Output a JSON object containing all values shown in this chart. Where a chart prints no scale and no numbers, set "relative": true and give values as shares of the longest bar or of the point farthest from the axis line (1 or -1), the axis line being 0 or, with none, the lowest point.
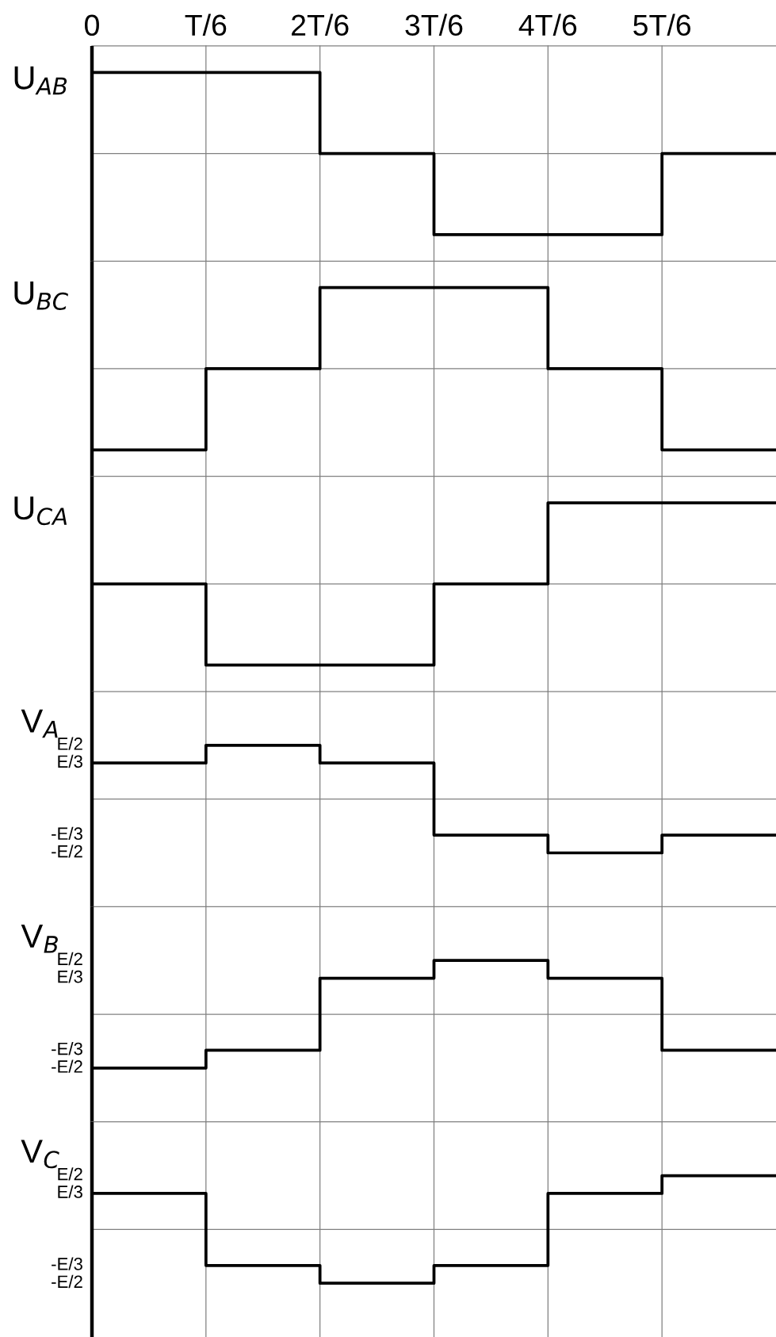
{
  "chart_data": [
    {
      "type": "step",
      "ylabel": "U$_{AB}$",
      "relative": true,
      "categories": [
        "0",
        "T/6",
        "2T/6",
        "3T/6",
        "4T/6",
        "5T/6",
        null
      ],
      "tick_labels": "x",
      "grid": "x",
      "ref_lines": [
        {
          "axis": "y",
          "value": 0,
          "color": "#808080"
        }
      ],
      "series": [
        {
          "color": "#000000",
          "values": [
            1,
            1,
            0,
            -1,
            -1,
            0,
            0
          ]
        }
      ]
    },
    {
      "type": "step",
      "ylabel": "U$_{BC}$",
      "relative": true,
      "categories": [
        null,
        null,
        null,
        null,
        null,
        null,
        null
      ],
      "tick_labels": false,
      "grid": "x",
      "ref_lines": [
        {
          "axis": "y",
          "value": 0,
          "color": "#808080"
        }
      ],
      "series": [
        {
          "color": "#000000",
          "values": [
            -1,
            0,
            1,
            1,
            0,
            -1,
            -1
          ]
        }
      ]
    },
    {
      "type": "step",
      "ylabel": "U$_{CA}$",
      "relative": true,
      "categories": [
        null,
        null,
        null,
        null,
        null,
        null,
        null
      ],
      "tick_labels": false,
      "grid": "x",
      "ref_lines": [
        {
          "axis": "y",
          "value": 0,
          "color": "#808080"
        }
      ],
      "series": [
        {
          "color": "#000000",
          "values": [
            0,
            -1,
            -1,
            0,
            1,
            1,
            1
          ]
        }
      ]
    },
    {
      "type": "step",
      "ylabel": "V$_{A}$",
      "relative": true,
      "categories": [
        null,
        null,
        null,
        null,
        null,
        null,
        null
      ],
      "tick_labels": false,
      "grid": "x",
      "ref_lines": [
        {
          "axis": "y",
          "value": 0,
          "color": "#808080"
        }
      ],
      "annotations": [
        "E/2",
        "E/3",
        "-E/3",
        "-E/2"
      ],
      "series": [
        {
          "color": "#000000",
          "values": [
            0.67,
            1,
            0.67,
            -0.67,
            -1,
            -0.67,
            -0.67
          ]
        }
      ]
    },
    {
      "type": "step",
      "ylabel": "V$_{B}$",
      "relative": true,
      "categories": [
        null,
        null,
        null,
        null,
        null,
        null,
        null
      ],
      "tick_labels": false,
      "grid": "x",
      "ref_lines": [
        {
          "axis": "y",
          "value": 0,
          "color": "#808080"
        }
      ],
      "annotations": [
        "E/2",
        "E/3",
        "-E/3",
        "-E/2"
      ],
      "series": [
        {
          "color": "#000000",
          "values": [
            -1,
            -0.67,
            0.67,
            1,
            0.67,
            -0.67,
            -0.67
          ]
        }
      ]
    },
    {
      "type": "step",
      "ylabel": "V$_{C}$",
      "relative": true,
      "categories": [
        null,
        null,
        null,
        null,
        null,
        null,
        null
      ],
      "tick_labels": false,
      "grid": "x",
      "ref_lines": [
        {
          "axis": "y",
          "value": 0,
          "color": "#808080"
        }
      ],
      "annotations": [
        "E/2",
        "E/3",
        "-E/3",
        "-E/2"
      ],
      "series": [
        {
          "color": "#000000",
          "values": [
            0.67,
            -0.67,
            -1,
            -0.67,
            0.67,
            1,
            1
          ]
        }
      ]
    }
  ]
}
